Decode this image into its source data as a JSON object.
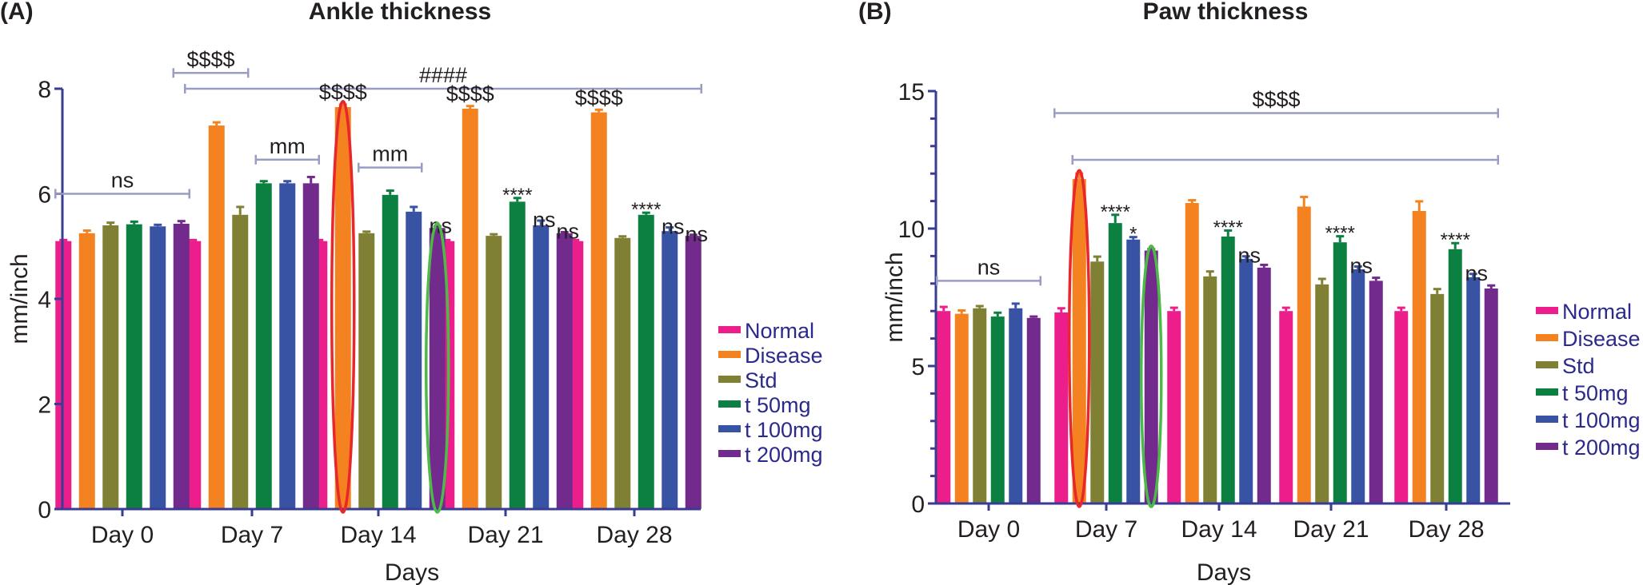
{
  "figure": {
    "panels": [
      "(A)",
      "(B)"
    ]
  },
  "chart_data": [
    {
      "type": "bar",
      "panel_label": "(A)",
      "title": "Ankle thickness",
      "xlabel": "Days",
      "ylabel": "mm/inch",
      "ylim": [
        0,
        8
      ],
      "yticks": [
        0,
        2,
        4,
        6,
        8
      ],
      "minor_yticks": [],
      "categories": [
        "Day 0",
        "Day 7",
        "Day 14",
        "Day 21",
        "Day 28"
      ],
      "legend_position": "right",
      "series": [
        {
          "name": "Normal",
          "color": "#ec1e8c",
          "values": [
            5.1,
            5.1,
            5.1,
            5.1,
            5.1
          ],
          "errors": [
            0.02,
            0.02,
            0.02,
            0.02,
            0.02
          ]
        },
        {
          "name": "Disease",
          "color": "#f58220",
          "values": [
            5.25,
            7.3,
            7.65,
            7.62,
            7.55
          ],
          "errors": [
            0.05,
            0.06,
            0.05,
            0.05,
            0.05
          ]
        },
        {
          "name": "Std",
          "color": "#808035",
          "values": [
            5.4,
            5.6,
            5.25,
            5.2,
            5.16
          ],
          "errors": [
            0.05,
            0.15,
            0.03,
            0.03,
            0.03
          ]
        },
        {
          "name": "t 50mg",
          "color": "#0b8040",
          "values": [
            5.42,
            6.2,
            5.98,
            5.85,
            5.6
          ],
          "errors": [
            0.05,
            0.04,
            0.08,
            0.07,
            0.04
          ]
        },
        {
          "name": "t 100mg",
          "color": "#3953a4",
          "values": [
            5.38,
            6.2,
            5.66,
            5.4,
            5.29
          ],
          "errors": [
            0.03,
            0.04,
            0.09,
            0.09,
            0.07
          ]
        },
        {
          "name": "t 200mg",
          "color": "#722a8c",
          "values": [
            5.43,
            6.2,
            5.35,
            5.25,
            5.2
          ],
          "errors": [
            0.05,
            0.12,
            0.03,
            0.02,
            0.02
          ]
        }
      ],
      "annotations": [
        {
          "text": "ns",
          "type": "bracket",
          "from": "Day 0:Normal",
          "to": "Day 0:t 200mg",
          "y": 6.0
        },
        {
          "text": "$$$$",
          "type": "bracket",
          "from": "Day 0:t 200mg",
          "to": "Day 7:Std",
          "y": 8.3
        },
        {
          "text": "####",
          "type": "bracket",
          "from": "Day 7:Normal",
          "to": "Day 28:t 200mg",
          "y": 8.0
        },
        {
          "text": "mm",
          "type": "bracket",
          "from": "Day 7:t 50mg",
          "to": "Day 7:t 200mg",
          "y": 6.65
        },
        {
          "text": "mm",
          "type": "bracket",
          "from": "Day 14:Std",
          "to": "Day 14:t 100mg",
          "y": 6.5
        },
        {
          "text": "$$$$",
          "type": "label",
          "over": "Day 14:Disease"
        },
        {
          "text": "$$$$",
          "type": "label",
          "over": "Day 21:Disease"
        },
        {
          "text": "$$$$",
          "type": "label",
          "over": "Day 28:Disease"
        },
        {
          "text": "ns",
          "type": "label",
          "over": "Day 14:t 200mg"
        },
        {
          "text": "****",
          "type": "label",
          "over": "Day 21:t 50mg"
        },
        {
          "text": "ns",
          "type": "label",
          "over": "Day 21:t 100mg"
        },
        {
          "text": "ns",
          "type": "label",
          "over": "Day 21:t 200mg"
        },
        {
          "text": "****",
          "type": "label",
          "over": "Day 28:t 50mg"
        },
        {
          "text": "ns",
          "type": "label",
          "over": "Day 28:t 100mg"
        },
        {
          "text": "ns",
          "type": "label",
          "over": "Day 28:t 200mg"
        }
      ],
      "highlights": [
        {
          "color": "#e8262b",
          "target": "Day 14:Disease"
        },
        {
          "color": "#4dba48",
          "target": "Day 14:t 200mg"
        }
      ]
    },
    {
      "type": "bar",
      "panel_label": "(B)",
      "title": "Paw thickness",
      "xlabel": "Days",
      "ylabel": "mm/inch",
      "ylim": [
        0,
        15
      ],
      "yticks": [
        0,
        5,
        10,
        15
      ],
      "minor_yticks": [
        1,
        2,
        3,
        4,
        6,
        7,
        8,
        9,
        11,
        12,
        13,
        14
      ],
      "categories": [
        "Day 0",
        "Day 7",
        "Day 14",
        "Day 21",
        "Day 28"
      ],
      "legend_position": "right",
      "series": [
        {
          "name": "Normal",
          "color": "#ec1e8c",
          "values": [
            7.0,
            6.95,
            7.0,
            7.0,
            7.0
          ],
          "errors": [
            0.15,
            0.15,
            0.12,
            0.12,
            0.12
          ]
        },
        {
          "name": "Disease",
          "color": "#f58220",
          "values": [
            6.9,
            11.8,
            10.93,
            10.8,
            10.64
          ],
          "errors": [
            0.12,
            0.2,
            0.1,
            0.35,
            0.35
          ]
        },
        {
          "name": "Std",
          "color": "#808035",
          "values": [
            7.1,
            8.8,
            8.26,
            7.97,
            7.62
          ],
          "errors": [
            0.08,
            0.18,
            0.18,
            0.2,
            0.18
          ]
        },
        {
          "name": "t 50mg",
          "color": "#0b8040",
          "values": [
            6.8,
            10.2,
            9.71,
            9.5,
            9.25
          ],
          "errors": [
            0.14,
            0.3,
            0.22,
            0.22,
            0.22
          ]
        },
        {
          "name": "t 100mg",
          "color": "#3953a4",
          "values": [
            7.1,
            9.6,
            8.9,
            8.52,
            8.23
          ],
          "errors": [
            0.17,
            0.09,
            0.09,
            0.1,
            0.12
          ]
        },
        {
          "name": "t 200mg",
          "color": "#722a8c",
          "values": [
            6.75,
            9.2,
            8.58,
            8.1,
            7.82
          ],
          "errors": [
            0.05,
            0.05,
            0.1,
            0.11,
            0.11
          ]
        }
      ],
      "annotations": [
        {
          "text": "ns",
          "type": "bracket",
          "from": "Day 0:Normal",
          "to": "Day 0:t 200mg",
          "y": 8.1
        },
        {
          "text": "$$$$",
          "type": "bracket",
          "from": "Day 7:Normal",
          "to": "Day 28:t 200mg",
          "y": 14.2
        },
        {
          "text": "",
          "type": "bracket",
          "from": "Day 7:Disease",
          "to": "Day 28:t 200mg",
          "y": 12.5
        },
        {
          "text": "****",
          "type": "label",
          "over": "Day 7:t 50mg"
        },
        {
          "text": "*",
          "type": "label",
          "over": "Day 7:t 100mg"
        },
        {
          "text": "****",
          "type": "label",
          "over": "Day 14:t 50mg"
        },
        {
          "text": "ns",
          "type": "label",
          "over": "Day 14:t 100mg"
        },
        {
          "text": "****",
          "type": "label",
          "over": "Day 21:t 50mg"
        },
        {
          "text": "ns",
          "type": "label",
          "over": "Day 21:t 100mg"
        },
        {
          "text": "****",
          "type": "label",
          "over": "Day 28:t 50mg"
        },
        {
          "text": "ns",
          "type": "label",
          "over": "Day 28:t 100mg"
        }
      ],
      "highlights": [
        {
          "color": "#e8262b",
          "target": "Day 7:Disease"
        },
        {
          "color": "#4dba48",
          "target": "Day 7:t 200mg"
        }
      ]
    }
  ]
}
